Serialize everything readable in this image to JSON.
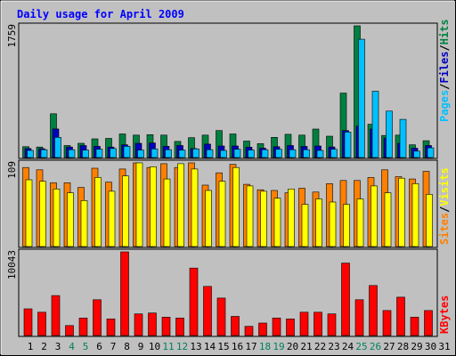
{
  "title": "Daily usage for April 2009",
  "colors": {
    "background": "#c0c0c0",
    "title": "#0000ff",
    "hits": "#008040",
    "files": "#0000c0",
    "pages": "#00c0ff",
    "visits": "#ffff00",
    "sites": "#ff8000",
    "kbytes": "#ff0000",
    "weekend": "#00805c",
    "gridline": "#808080"
  },
  "legend": {
    "top": {
      "pages": "Pages",
      "files": "Files",
      "hits": "Hits",
      "sep": "/"
    },
    "middle": {
      "sites": "Sites",
      "visits": "Visits",
      "sep": "/"
    },
    "bottom": {
      "kbytes": "KBytes"
    }
  },
  "chart_data": [
    {
      "type": "bar",
      "panel": "hits-files-pages",
      "ymax_label": "1759",
      "ylim": [
        0,
        1759
      ],
      "x": [
        1,
        2,
        3,
        4,
        5,
        6,
        7,
        8,
        9,
        10,
        11,
        12,
        13,
        14,
        15,
        16,
        17,
        18,
        19,
        20,
        21,
        22,
        23,
        24,
        25,
        26,
        27,
        28,
        29,
        30
      ],
      "series": [
        {
          "name": "Hits",
          "values": [
            145,
            140,
            585,
            160,
            190,
            250,
            255,
            315,
            300,
            305,
            300,
            215,
            265,
            300,
            360,
            315,
            220,
            185,
            270,
            310,
            300,
            380,
            285,
            860,
            1759,
            445,
            295,
            300,
            170,
            225
          ]
        },
        {
          "name": "Files",
          "values": [
            120,
            118,
            382,
            140,
            160,
            150,
            140,
            170,
            190,
            195,
            150,
            160,
            120,
            180,
            155,
            155,
            138,
            125,
            145,
            160,
            148,
            155,
            142,
            360,
            420,
            380,
            260,
            190,
            125,
            160
          ]
        },
        {
          "name": "Pages",
          "values": [
            95,
            105,
            270,
            105,
            100,
            110,
            120,
            150,
            100,
            115,
            105,
            100,
            115,
            105,
            95,
            110,
            100,
            105,
            110,
            105,
            105,
            95,
            110,
            340,
            1580,
            885,
            620,
            510,
            85,
            130
          ]
        }
      ]
    },
    {
      "type": "bar",
      "panel": "sites-visits",
      "ymax_label": "109",
      "ylim": [
        0,
        109
      ],
      "x": [
        1,
        2,
        3,
        4,
        5,
        6,
        7,
        8,
        9,
        10,
        11,
        12,
        13,
        14,
        15,
        16,
        17,
        18,
        19,
        20,
        21,
        22,
        23,
        24,
        25,
        26,
        27,
        28,
        29,
        30
      ],
      "series": [
        {
          "name": "Visits",
          "values": [
            87,
            85,
            75,
            70,
            60,
            90,
            72,
            92,
            109,
            104,
            88,
            108,
            101,
            73,
            85,
            103,
            79,
            72,
            63,
            75,
            55,
            62,
            58,
            55,
            62,
            79,
            70,
            89,
            82,
            68
          ]
        },
        {
          "name": "Sites",
          "values": [
            103,
            100,
            83,
            83,
            77,
            102,
            84,
            101,
            109,
            103,
            108,
            103,
            109,
            80,
            96,
            107,
            81,
            74,
            73,
            70,
            76,
            71,
            82,
            86,
            86,
            90,
            100,
            91,
            88,
            98
          ]
        }
      ]
    },
    {
      "type": "bar",
      "panel": "kbytes",
      "ymax_label": "10043",
      "ylim": [
        0,
        10043
      ],
      "x": [
        1,
        2,
        3,
        4,
        5,
        6,
        7,
        8,
        9,
        10,
        11,
        12,
        13,
        14,
        15,
        16,
        17,
        18,
        19,
        20,
        21,
        22,
        23,
        24,
        25,
        26,
        27,
        28,
        29,
        30
      ],
      "series": [
        {
          "name": "KBytes",
          "values": [
            3200,
            2800,
            4800,
            1200,
            2100,
            4300,
            2000,
            10043,
            2600,
            2700,
            2200,
            2100,
            8100,
            5900,
            4500,
            2300,
            1100,
            1500,
            2100,
            2000,
            2800,
            2800,
            2600,
            8700,
            4300,
            6000,
            3000,
            4600,
            2200,
            3000
          ]
        }
      ]
    }
  ],
  "x_axis": {
    "labels": [
      "1",
      "2",
      "3",
      "4",
      "5",
      "6",
      "7",
      "8",
      "9",
      "10",
      "11",
      "12",
      "13",
      "14",
      "15",
      "16",
      "17",
      "18",
      "19",
      "20",
      "21",
      "22",
      "23",
      "24",
      "25",
      "26",
      "27",
      "28",
      "29",
      "30",
      "31"
    ],
    "weekend_days": [
      "4",
      "5",
      "11",
      "12",
      "18",
      "19",
      "25",
      "26"
    ]
  }
}
